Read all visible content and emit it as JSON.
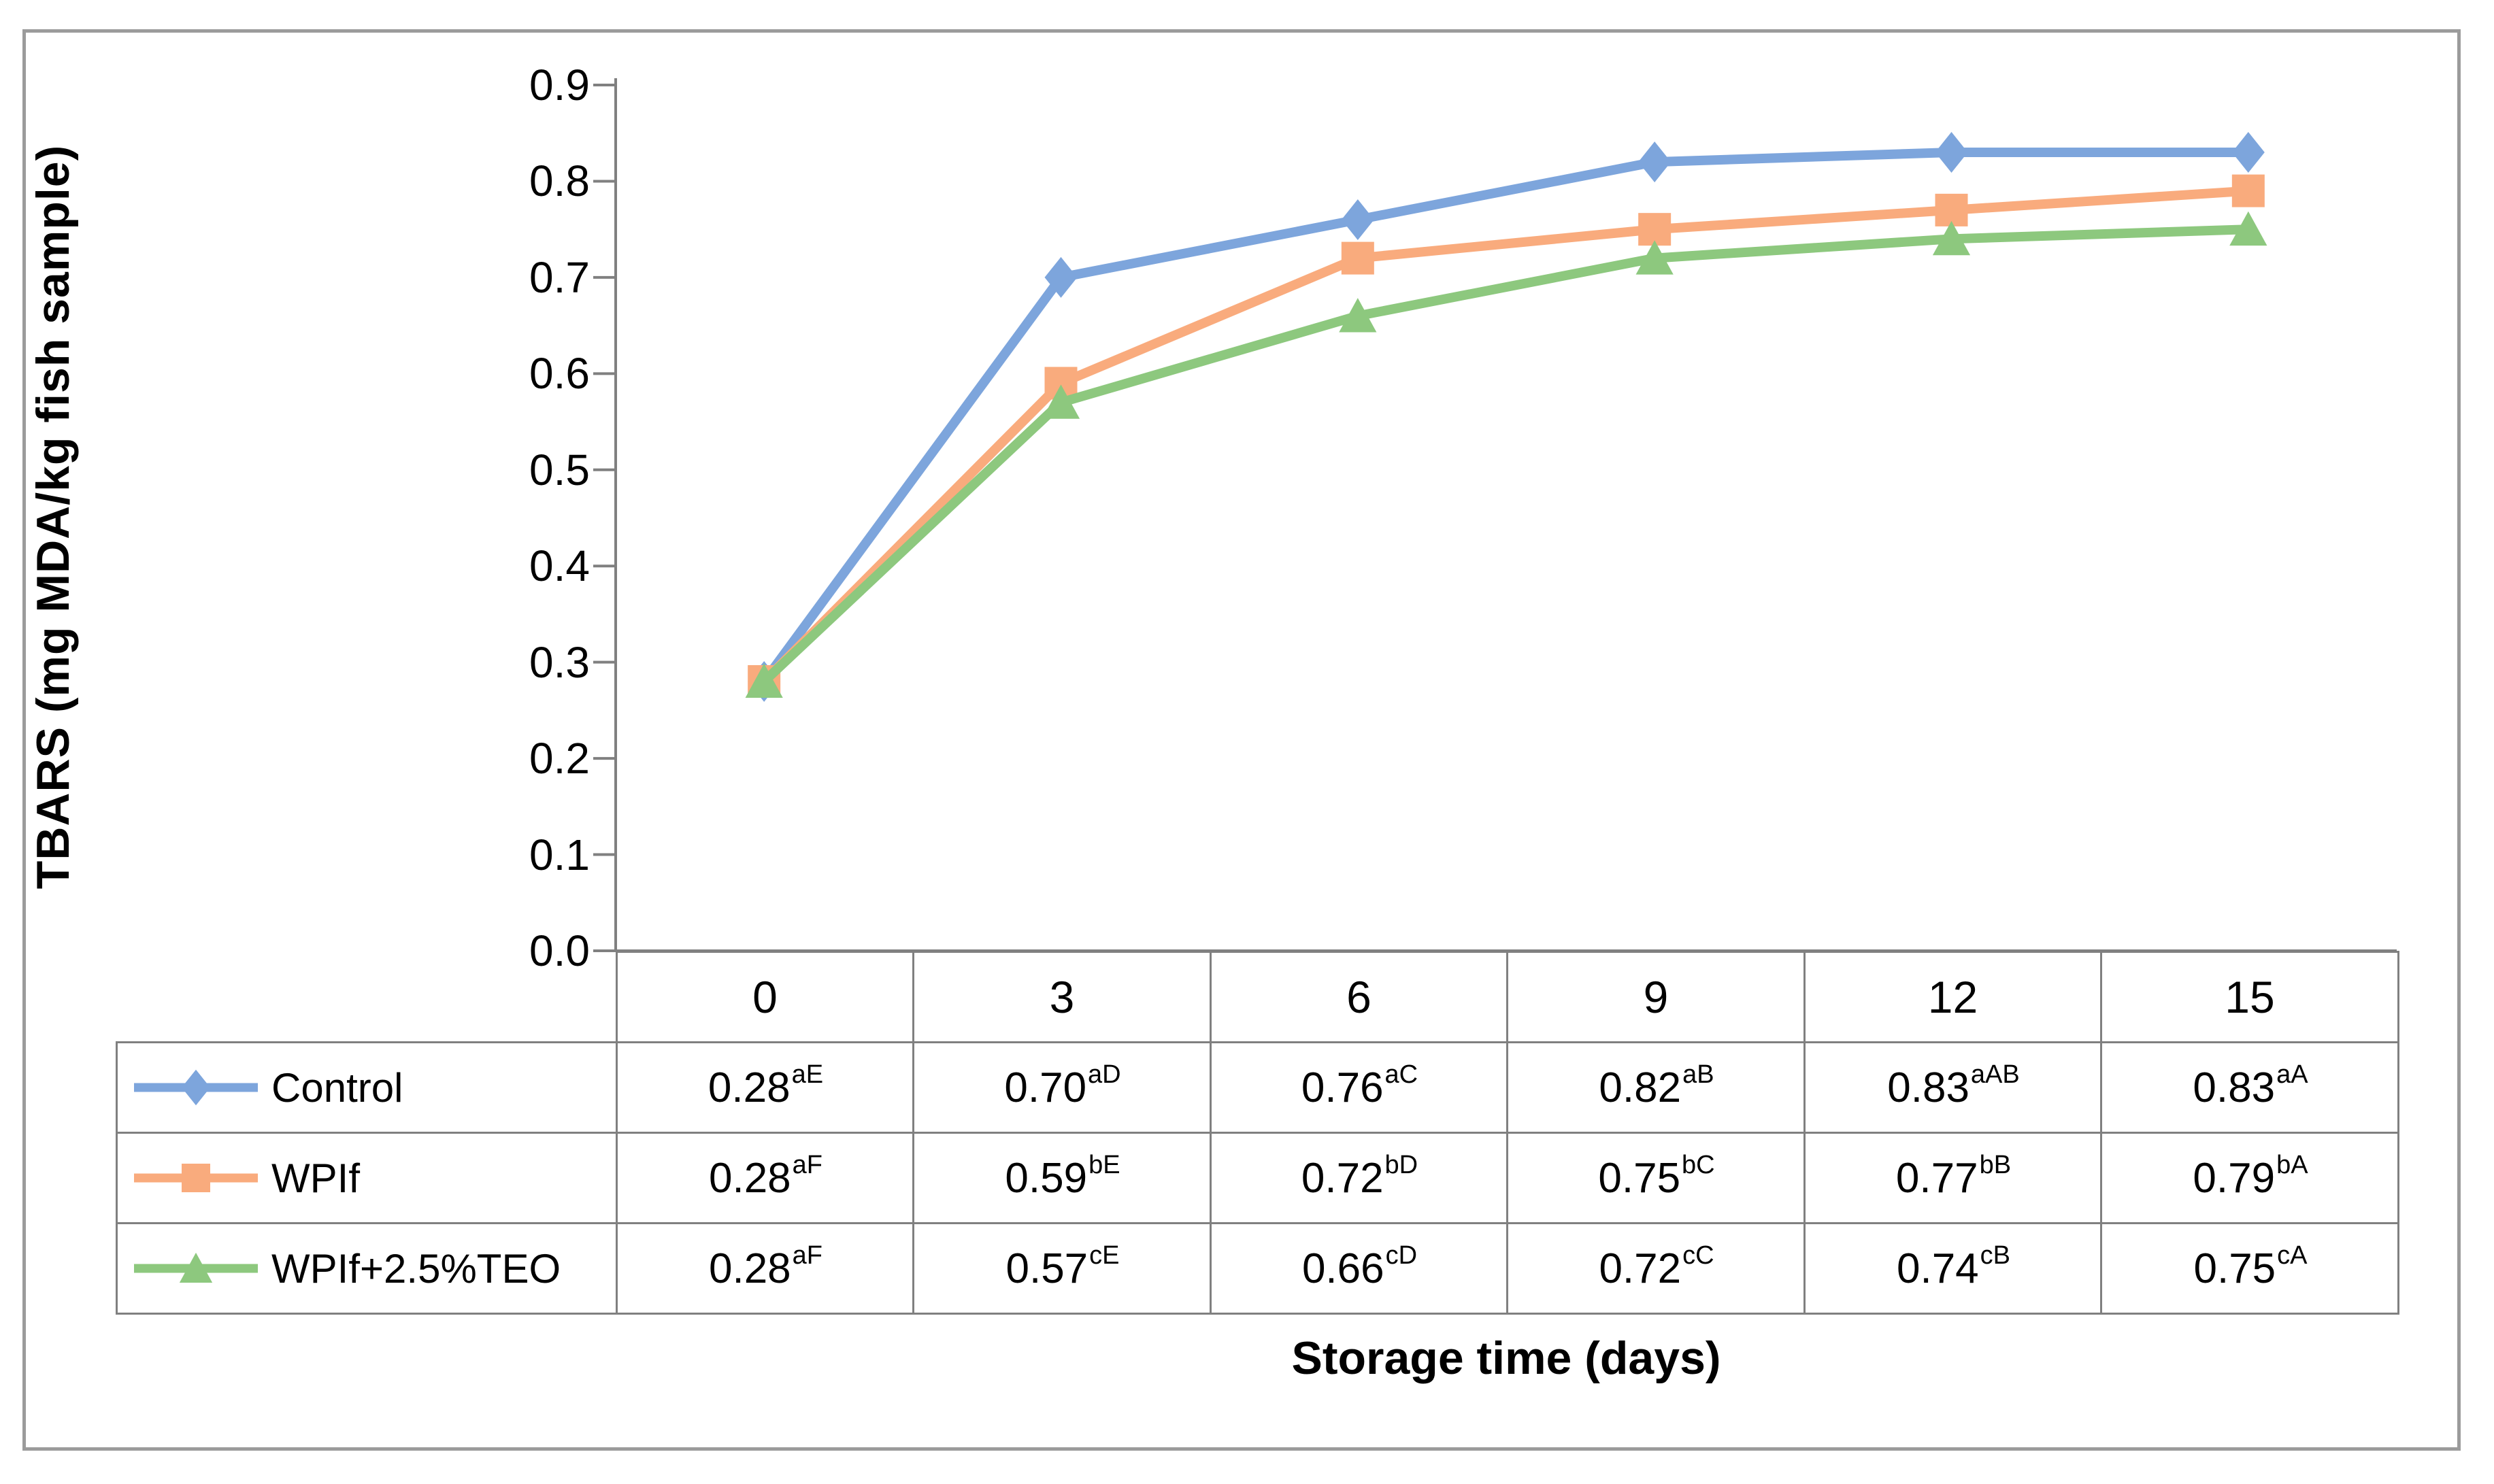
{
  "chart_data": {
    "type": "line",
    "title": "",
    "xlabel": "Storage time (days)",
    "ylabel": "TBARS (mg MDA/kg fish sample)",
    "categories": [
      0,
      3,
      6,
      9,
      12,
      15
    ],
    "y_ticks": [
      0.0,
      0.1,
      0.2,
      0.3,
      0.4,
      0.5,
      0.6,
      0.7,
      0.8,
      0.9
    ],
    "ylim": [
      0.0,
      0.9
    ],
    "grid": false,
    "legend_position": "left-column-of-data-table",
    "has_error_bars": true,
    "series": [
      {
        "name": "Control",
        "color": "#7DA5DC",
        "marker": "diamond",
        "values": [
          0.28,
          0.7,
          0.76,
          0.82,
          0.83,
          0.83
        ]
      },
      {
        "name": "WPIf",
        "color": "#F9AB7D",
        "marker": "square",
        "values": [
          0.28,
          0.59,
          0.72,
          0.75,
          0.77,
          0.79
        ]
      },
      {
        "name": "WPIf+2.5%TEO",
        "color": "#8DC87E",
        "marker": "triangle",
        "values": [
          0.28,
          0.57,
          0.66,
          0.72,
          0.74,
          0.75
        ]
      }
    ]
  },
  "table": {
    "x_labels": [
      "0",
      "3",
      "6",
      "9",
      "12",
      "15"
    ],
    "rows": [
      {
        "label": "Control",
        "cells": [
          {
            "value": "0.28",
            "sup": "aE"
          },
          {
            "value": "0.70",
            "sup": "aD"
          },
          {
            "value": "0.76",
            "sup": "aC"
          },
          {
            "value": "0.82",
            "sup": "aB"
          },
          {
            "value": "0.83",
            "sup": "aAB"
          },
          {
            "value": "0.83",
            "sup": "aA"
          }
        ]
      },
      {
        "label": "WPIf",
        "cells": [
          {
            "value": "0.28",
            "sup": "aF"
          },
          {
            "value": "0.59",
            "sup": "bE"
          },
          {
            "value": "0.72",
            "sup": "bD"
          },
          {
            "value": "0.75",
            "sup": "bC"
          },
          {
            "value": "0.77",
            "sup": "bB"
          },
          {
            "value": "0.79",
            "sup": "bA"
          }
        ]
      },
      {
        "label": "WPIf+2.5%TEO",
        "cells": [
          {
            "value": "0.28",
            "sup": "aF"
          },
          {
            "value": "0.57",
            "sup": "cE"
          },
          {
            "value": "0.66",
            "sup": "cD"
          },
          {
            "value": "0.72",
            "sup": "cC"
          },
          {
            "value": "0.74",
            "sup": "cB"
          },
          {
            "value": "0.75",
            "sup": "cA"
          }
        ]
      }
    ]
  },
  "colors": {
    "axis": "#808080",
    "table_border": "#808080",
    "outer_border": "#9B9B9B",
    "error_bar": "#3F3F3F",
    "text": "#000000"
  }
}
